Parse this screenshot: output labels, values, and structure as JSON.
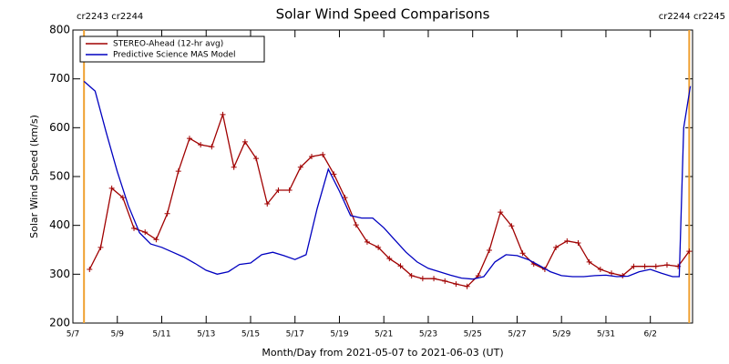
{
  "chart_data": {
    "type": "line",
    "title": "Solar Wind Speed Comparisons",
    "xlabel": "Month/Day from 2021-05-07 to 2021-06-03 (UT)",
    "ylabel": "Solar Wind Speed (km/s)",
    "annotations": [
      "cr2243 cr2244",
      "cr2244 cr2245"
    ],
    "vlines": [
      0.5,
      27.75
    ],
    "vline_color": "#f0a030",
    "xlim": [
      0,
      27.9
    ],
    "ylim": [
      200,
      800
    ],
    "xticks": [
      {
        "value": 0,
        "label": "5/7"
      },
      {
        "value": 2,
        "label": "5/9"
      },
      {
        "value": 4,
        "label": "5/11"
      },
      {
        "value": 6,
        "label": "5/13"
      },
      {
        "value": 8,
        "label": "5/15"
      },
      {
        "value": 10,
        "label": "5/17"
      },
      {
        "value": 12,
        "label": "5/19"
      },
      {
        "value": 14,
        "label": "5/21"
      },
      {
        "value": 16,
        "label": "5/23"
      },
      {
        "value": 18,
        "label": "5/25"
      },
      {
        "value": 20,
        "label": "5/27"
      },
      {
        "value": 22,
        "label": "5/29"
      },
      {
        "value": 24,
        "label": "5/31"
      },
      {
        "value": 26,
        "label": "6/2"
      }
    ],
    "yticks": [
      200,
      300,
      400,
      500,
      600,
      700,
      800
    ],
    "legend": "upper left",
    "series": [
      {
        "name": "STEREO-Ahead (12-hr avg)",
        "color": "#a00000",
        "marker": "+",
        "x": [
          0.75,
          1.25,
          1.75,
          2.25,
          2.75,
          3.25,
          3.75,
          4.25,
          4.75,
          5.25,
          5.75,
          6.25,
          6.75,
          7.25,
          7.75,
          8.25,
          8.75,
          9.25,
          9.75,
          10.25,
          10.75,
          11.25,
          11.75,
          12.25,
          12.75,
          13.25,
          13.75,
          14.25,
          14.75,
          15.25,
          15.75,
          16.25,
          16.75,
          17.25,
          17.75,
          18.25,
          18.75,
          19.25,
          19.75,
          20.25,
          20.75,
          21.25,
          21.75,
          22.25,
          22.75,
          23.25,
          23.75,
          24.25,
          24.75,
          25.25,
          25.75,
          26.25,
          26.75,
          27.25,
          27.75
        ],
        "values": [
          310,
          355,
          476,
          457,
          394,
          386,
          371,
          424,
          511,
          578,
          565,
          561,
          627,
          519,
          571,
          537,
          444,
          472,
          472,
          519,
          541,
          545,
          505,
          457,
          401,
          366,
          355,
          332,
          317,
          297,
          291,
          291,
          286,
          280,
          275,
          297,
          349,
          427,
          399,
          343,
          321,
          310,
          355,
          368,
          364,
          325,
          310,
          302,
          297,
          316,
          316,
          316,
          319,
          316,
          347
        ]
      },
      {
        "name": "Predictive Science MAS Model",
        "color": "#0000c0",
        "x": [
          0.5,
          1.0,
          1.5,
          2.0,
          2.5,
          3.0,
          3.5,
          4.0,
          4.5,
          5.0,
          5.5,
          6.0,
          6.5,
          7.0,
          7.5,
          8.0,
          8.5,
          9.0,
          9.5,
          10.0,
          10.5,
          11.0,
          11.5,
          12.0,
          12.5,
          13.0,
          13.5,
          14.0,
          14.5,
          15.0,
          15.5,
          16.0,
          16.5,
          17.0,
          17.5,
          18.0,
          18.5,
          19.0,
          19.5,
          20.0,
          20.5,
          21.0,
          21.5,
          22.0,
          22.5,
          23.0,
          23.5,
          24.0,
          24.5,
          25.0,
          25.5,
          26.0,
          26.5,
          27.0,
          27.3,
          27.5,
          27.8
        ],
        "values": [
          695,
          675,
          590,
          510,
          440,
          385,
          362,
          355,
          345,
          335,
          322,
          308,
          300,
          305,
          320,
          323,
          340,
          345,
          338,
          330,
          340,
          435,
          515,
          470,
          420,
          415,
          415,
          395,
          370,
          345,
          325,
          312,
          305,
          298,
          292,
          290,
          295,
          325,
          340,
          338,
          330,
          318,
          305,
          297,
          295,
          295,
          297,
          298,
          295,
          296,
          305,
          310,
          302,
          295,
          295,
          600,
          685
        ]
      }
    ]
  }
}
